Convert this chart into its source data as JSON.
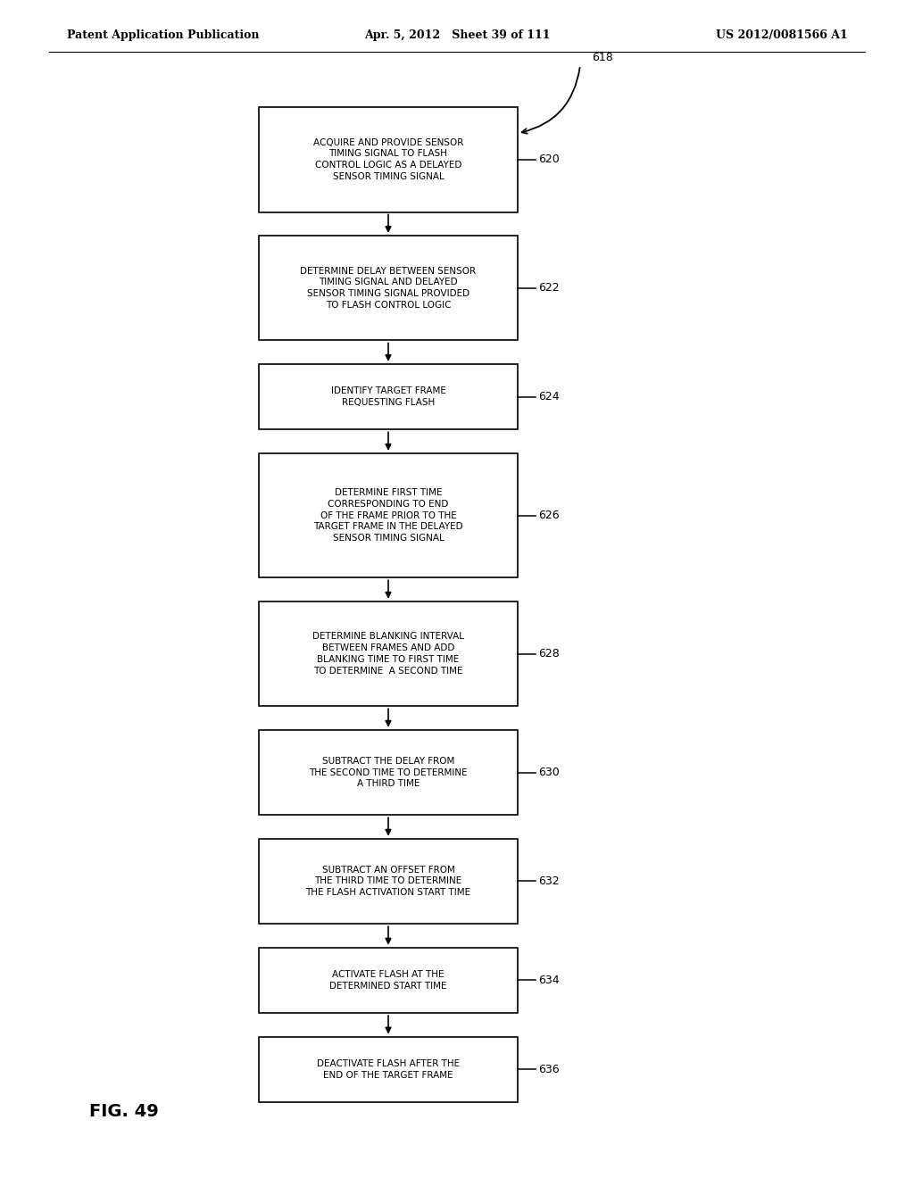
{
  "header_left": "Patent Application Publication",
  "header_center": "Apr. 5, 2012   Sheet 39 of 111",
  "header_right": "US 2012/0081566 A1",
  "figure_label": "FIG. 49",
  "top_label": "618",
  "background_color": "#ffffff",
  "boxes": [
    {
      "id": 620,
      "label": "620",
      "text": "ACQUIRE AND PROVIDE SENSOR\nTIMING SIGNAL TO FLASH\nCONTROL LOGIC AS A DELAYED\nSENSOR TIMING SIGNAL",
      "lines": 4
    },
    {
      "id": 622,
      "label": "622",
      "text": "DETERMINE DELAY BETWEEN SENSOR\nTIMING SIGNAL AND DELAYED\nSENSOR TIMING SIGNAL PROVIDED\nTO FLASH CONTROL LOGIC",
      "lines": 4
    },
    {
      "id": 624,
      "label": "624",
      "text": "IDENTIFY TARGET FRAME\nREQUESTING FLASH",
      "lines": 2
    },
    {
      "id": 626,
      "label": "626",
      "text": "DETERMINE FIRST TIME\nCORRESPONDING TO END\nOF THE FRAME PRIOR TO THE\nTARGET FRAME IN THE DELAYED\nSENSOR TIMING SIGNAL",
      "lines": 5
    },
    {
      "id": 628,
      "label": "628",
      "text": "DETERMINE BLANKING INTERVAL\nBETWEEN FRAMES AND ADD\nBLANKING TIME TO FIRST TIME\nTO DETERMINE  A SECOND TIME",
      "lines": 4
    },
    {
      "id": 630,
      "label": "630",
      "text": "SUBTRACT THE DELAY FROM\nTHE SECOND TIME TO DETERMINE\nA THIRD TIME",
      "lines": 3
    },
    {
      "id": 632,
      "label": "632",
      "text": "SUBTRACT AN OFFSET FROM\nTHE THIRD TIME TO DETERMINE\nTHE FLASH ACTIVATION START TIME",
      "lines": 3
    },
    {
      "id": 634,
      "label": "634",
      "text": "ACTIVATE FLASH AT THE\nDETERMINED START TIME",
      "lines": 2
    },
    {
      "id": 636,
      "label": "636",
      "text": "DEACTIVATE FLASH AFTER THE\nEND OF THE TARGET FRAME",
      "lines": 2
    }
  ],
  "box_color": "#ffffff",
  "box_edge_color": "#000000",
  "arrow_color": "#000000",
  "text_color": "#000000",
  "font_size": 7.5,
  "header_font_size": 9.0,
  "label_font_size": 9.0
}
